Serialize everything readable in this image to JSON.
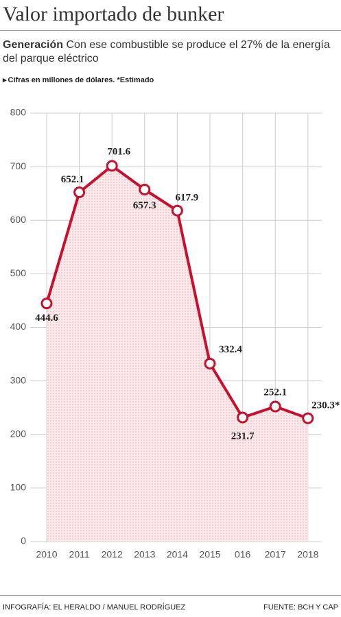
{
  "chart_data": {
    "type": "line",
    "title": "Valor importado de bunker",
    "subtitle_lead": "Generación",
    "subtitle": "Con ese combustible se produce el 27% de la energía del parque eléctrico",
    "note": "Cifras en millones de dólares. *Estimado",
    "categories": [
      "2010",
      "2011",
      "2012",
      "2013",
      "2014",
      "2015",
      "016",
      "2017",
      "2018"
    ],
    "values": [
      444.6,
      652.1,
      701.6,
      657.3,
      617.9,
      332.4,
      231.7,
      252.1,
      230.3
    ],
    "value_labels": [
      "444.6",
      "652.1",
      "701.6",
      "657.3",
      "617.9",
      "332.4",
      "231.7",
      "252.1",
      "230.3*"
    ],
    "color": "#c8102e",
    "ylim": [
      0,
      800
    ],
    "yticks": [
      0,
      100,
      200,
      300,
      400,
      500,
      600,
      700,
      800
    ],
    "grid": true,
    "credit": "INFOGRAFÍA: EL HERALDO / MANUEL RODRÍGUEZ",
    "source": "FUENTE: BCH Y CAP"
  }
}
